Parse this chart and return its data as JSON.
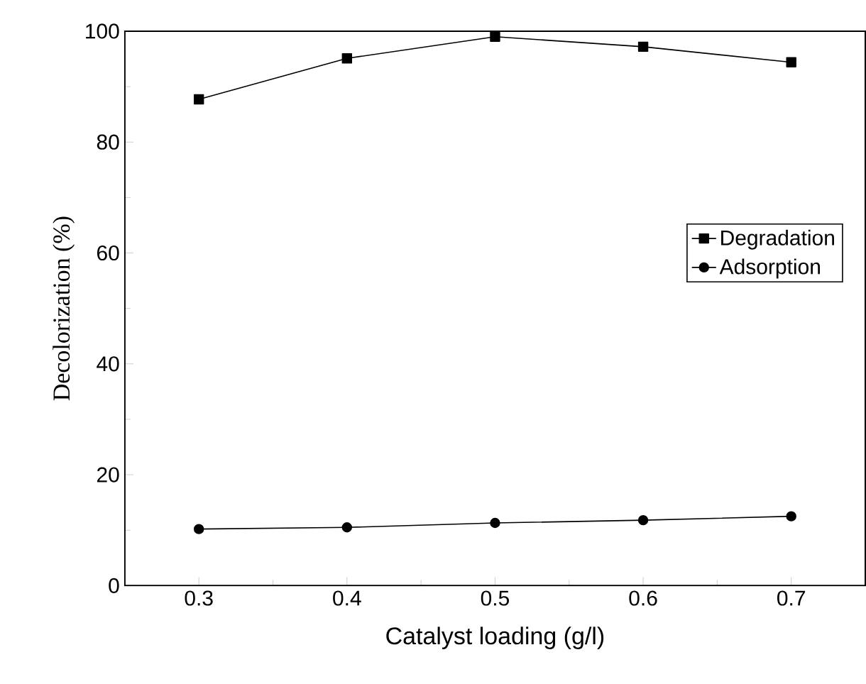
{
  "chart_data": {
    "type": "line",
    "xlabel": "Catalyst loading (g/l)",
    "ylabel": "Decolorization (%)",
    "x": [
      0.3,
      0.4,
      0.5,
      0.6,
      0.7
    ],
    "series": [
      {
        "name": "Degradation",
        "color": "#000000",
        "marker": "square",
        "values": [
          87.7,
          95.1,
          99.0,
          97.2,
          94.4
        ]
      },
      {
        "name": "Adsorption",
        "color": "#000000",
        "marker": "circle",
        "values": [
          10.2,
          10.5,
          11.3,
          11.8,
          12.5
        ]
      }
    ],
    "xlim": [
      0.25,
      0.75
    ],
    "ylim": [
      0,
      100
    ],
    "xticks": [
      0.3,
      0.4,
      0.5,
      0.6,
      0.7
    ],
    "yticks": [
      0,
      20,
      40,
      60,
      80,
      100
    ],
    "legend": "right",
    "grid": false,
    "line_style": "solid"
  }
}
